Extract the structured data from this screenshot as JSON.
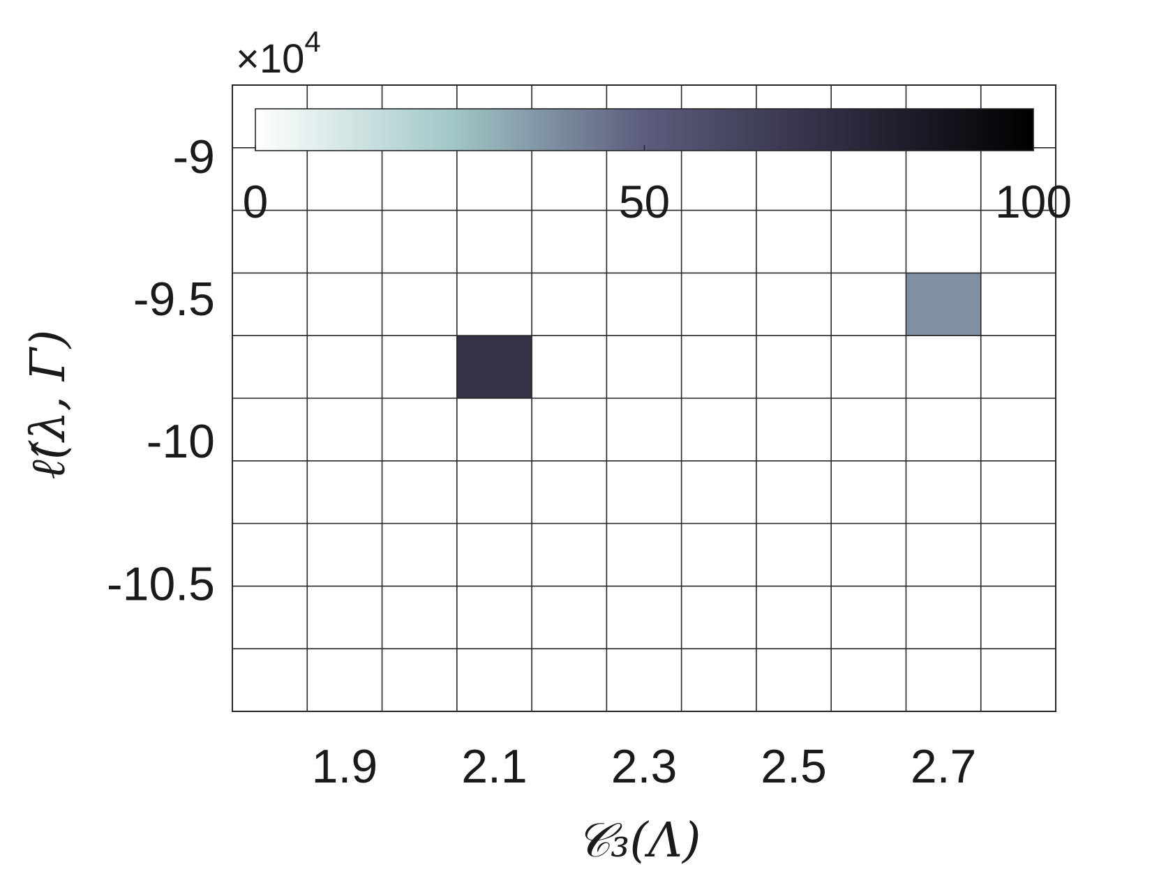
{
  "chart_data": {
    "type": "heatmap",
    "xlabel": "𝒞₃(Λ)",
    "ylabel": "ℓ̂(λ, Γ)",
    "y_exponent_label": "×10",
    "y_exponent_power": "4",
    "xlim": [
      1.75,
      2.85
    ],
    "ylim": [
      -10.95,
      -8.75
    ],
    "x_ticks": [
      1.9,
      2.1,
      2.3,
      2.5,
      2.7
    ],
    "x_tick_labels": [
      "1.9",
      "2.1",
      "2.3",
      "2.5",
      "2.7"
    ],
    "y_ticks": [
      -10.5,
      -10,
      -9.5,
      -9
    ],
    "y_tick_labels": [
      "-10.5",
      "-10",
      "-9.5",
      "-9"
    ],
    "bin_edges_x": [
      1.75,
      1.85,
      1.95,
      2.05,
      2.15,
      2.25,
      2.35,
      2.45,
      2.55,
      2.65,
      2.75,
      2.85
    ],
    "bin_edges_y": [
      -10.95,
      -10.73,
      -10.51,
      -10.29,
      -10.07,
      -9.85,
      -9.63,
      -9.41,
      -9.19,
      -8.97,
      -8.75
    ],
    "cells": [
      {
        "x": 2.1,
        "y": -9.74,
        "value": 72
      },
      {
        "x": 2.7,
        "y": -9.52,
        "value": 38
      }
    ],
    "colorbar": {
      "orientation": "horizontal",
      "location": "top",
      "range": [
        0,
        100
      ],
      "ticks": [
        0,
        50,
        100
      ],
      "tick_labels": [
        "0",
        "50",
        "100"
      ],
      "colormap": [
        "#ffffff",
        "#a3c8c8",
        "#5c5c7d",
        "#2e2c40",
        "#000000"
      ]
    },
    "grid": true
  }
}
